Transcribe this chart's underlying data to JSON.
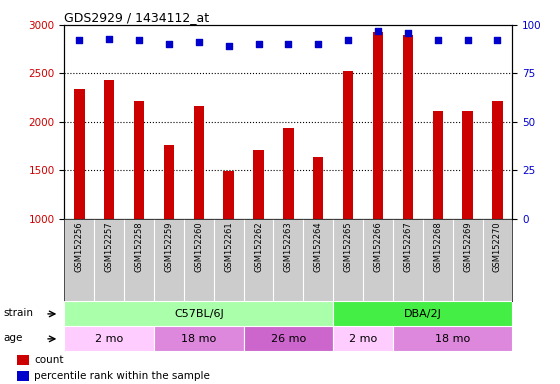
{
  "title": "GDS2929 / 1434112_at",
  "samples": [
    "GSM152256",
    "GSM152257",
    "GSM152258",
    "GSM152259",
    "GSM152260",
    "GSM152261",
    "GSM152262",
    "GSM152263",
    "GSM152264",
    "GSM152265",
    "GSM152266",
    "GSM152267",
    "GSM152268",
    "GSM152269",
    "GSM152270"
  ],
  "counts": [
    2340,
    2430,
    2220,
    1760,
    2160,
    1490,
    1710,
    1940,
    1640,
    2530,
    2930,
    2900,
    2110,
    2110,
    2220
  ],
  "percentile_ranks": [
    92,
    93,
    92,
    90,
    91,
    89,
    90,
    90,
    90,
    92,
    97,
    96,
    92,
    92,
    92
  ],
  "bar_color": "#cc0000",
  "dot_color": "#0000cc",
  "ylim_left": [
    1000,
    3000
  ],
  "ylim_right": [
    0,
    100
  ],
  "yticks_left": [
    1000,
    1500,
    2000,
    2500,
    3000
  ],
  "yticks_right": [
    0,
    25,
    50,
    75,
    100
  ],
  "dotted_line_y": [
    1500,
    2000,
    2500
  ],
  "strain_groups": [
    {
      "label": "C57BL/6J",
      "start": 0,
      "end": 9,
      "color": "#aaffaa"
    },
    {
      "label": "DBA/2J",
      "start": 9,
      "end": 15,
      "color": "#44ee44"
    }
  ],
  "age_groups": [
    {
      "label": "2 mo",
      "start": 0,
      "end": 3,
      "color": "#ffccff"
    },
    {
      "label": "18 mo",
      "start": 3,
      "end": 6,
      "color": "#dd88dd"
    },
    {
      "label": "26 mo",
      "start": 6,
      "end": 9,
      "color": "#cc66cc"
    },
    {
      "label": "2 mo",
      "start": 9,
      "end": 11,
      "color": "#ffccff"
    },
    {
      "label": "18 mo",
      "start": 11,
      "end": 15,
      "color": "#dd88dd"
    }
  ],
  "legend_items": [
    {
      "color": "#cc0000",
      "label": "count"
    },
    {
      "color": "#0000cc",
      "label": "percentile rank within the sample"
    }
  ],
  "xlabel_bg": "#cccccc",
  "chart_bg": "#ffffff"
}
